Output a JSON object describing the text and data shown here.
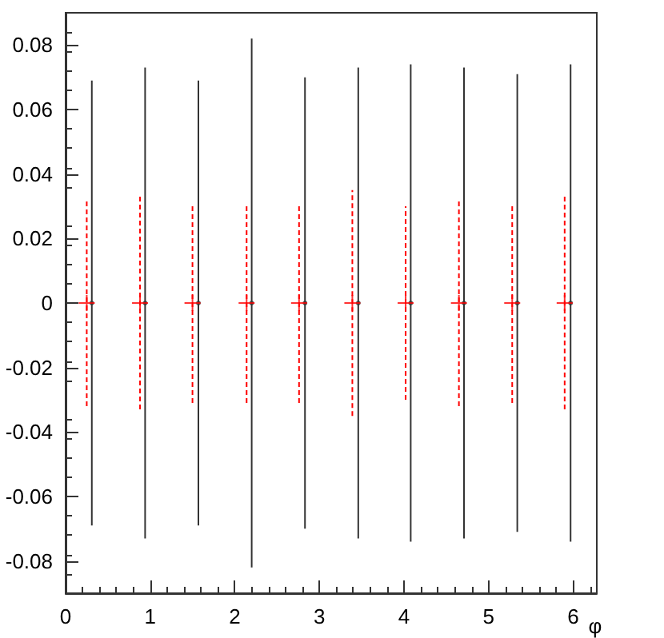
{
  "chart_data": {
    "type": "scatter",
    "xlabel": "φ",
    "xlim": [
      0,
      6.28
    ],
    "xticks": [
      0,
      1,
      2,
      3,
      4,
      5,
      6
    ],
    "ylim": [
      -0.09,
      0.09
    ],
    "yticks": [
      -0.08,
      -0.06,
      -0.04,
      -0.02,
      0,
      0.02,
      0.04,
      0.06,
      0.08
    ],
    "grid": false,
    "series": [
      {
        "color": "#333333",
        "marker": "circle",
        "line_style": "solid",
        "x": [
          0.31,
          0.94,
          1.57,
          2.2,
          2.83,
          3.46,
          4.08,
          4.71,
          5.34,
          5.97
        ],
        "values": [
          0,
          0,
          0,
          0,
          0,
          0,
          0,
          0,
          0,
          0
        ],
        "errors": [
          0.069,
          0.073,
          0.069,
          0.082,
          0.07,
          0.073,
          0.074,
          0.073,
          0.071,
          0.074
        ]
      },
      {
        "color": "#ff0000",
        "marker": "cross",
        "line_style": "dashed",
        "x": [
          0.25,
          0.88,
          1.5,
          2.14,
          2.76,
          3.39,
          4.02,
          4.65,
          5.28,
          5.9
        ],
        "values": [
          0,
          0,
          0,
          0,
          0,
          0,
          0,
          0,
          0,
          0
        ],
        "errors": [
          0.032,
          0.033,
          0.031,
          0.031,
          0.031,
          0.035,
          0.03,
          0.032,
          0.031,
          0.033
        ]
      }
    ]
  }
}
